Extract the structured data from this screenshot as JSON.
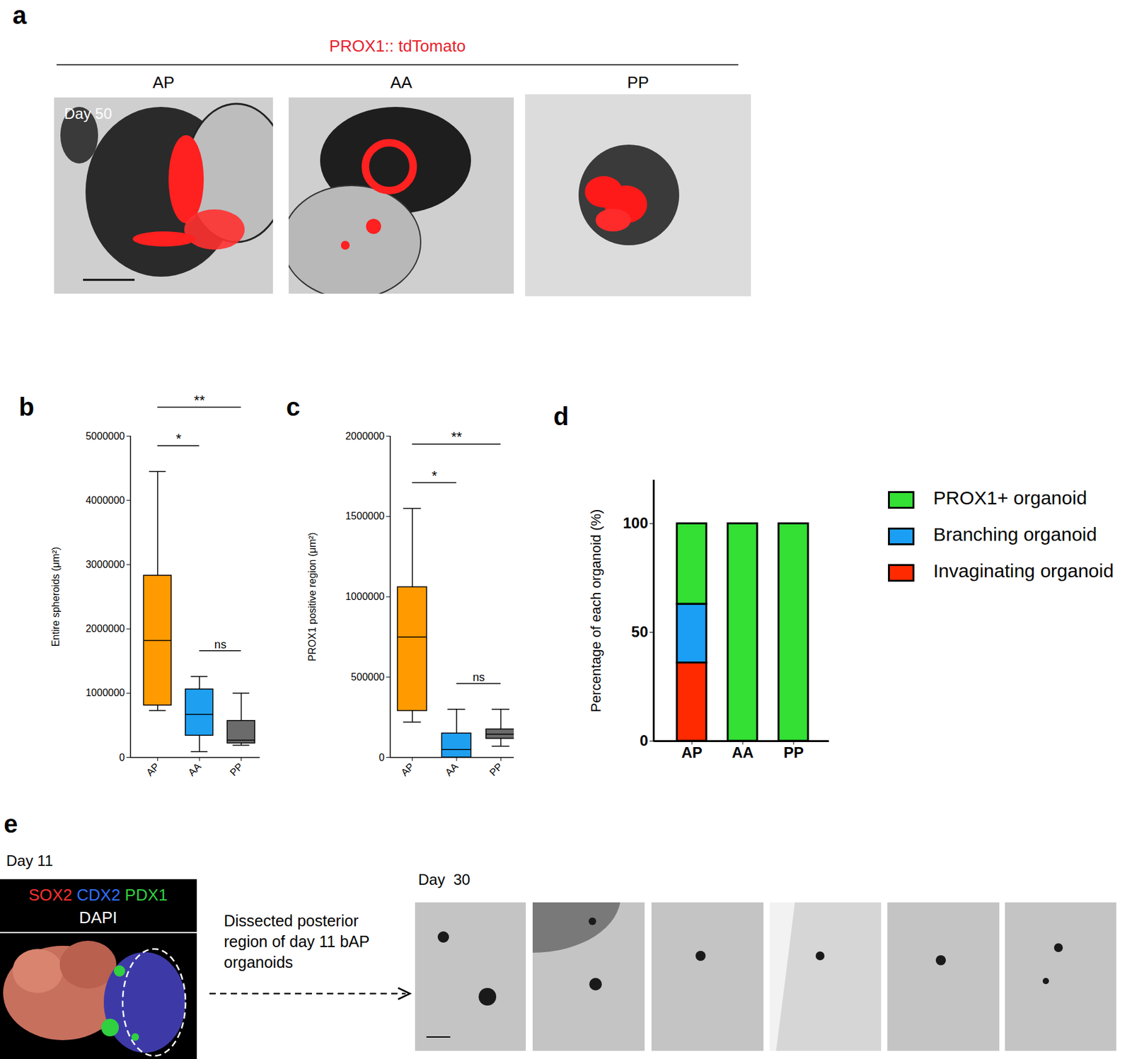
{
  "panel_a": {
    "letter": "a",
    "header": "PROX1:: tdTomato",
    "day_label": "Day 50",
    "images": [
      "AP",
      "AA",
      "PP"
    ]
  },
  "chart_data": [
    {
      "type": "box",
      "letter": "b",
      "y_label": "Entire spheroids (μm²)",
      "categories": [
        "AP",
        "AA",
        "PP"
      ],
      "colors": [
        "#ff9a00",
        "#1e9ff0",
        "#6b6b6b"
      ],
      "boxes": [
        {
          "min": 730000,
          "q1": 810000,
          "median": 1820000,
          "q3": 2830000,
          "max": 4450000
        },
        {
          "min": 90000,
          "q1": 340000,
          "median": 670000,
          "q3": 1060000,
          "max": 1260000
        },
        {
          "min": 190000,
          "q1": 220000,
          "median": 270000,
          "q3": 570000,
          "max": 1000000
        }
      ],
      "ylim": [
        0,
        5000000
      ],
      "yticks": [
        0,
        1000000,
        2000000,
        3000000,
        4000000,
        5000000
      ],
      "comparisons": [
        {
          "between": [
            "AP",
            "AA"
          ],
          "label": "*"
        },
        {
          "between": [
            "AP",
            "PP"
          ],
          "label": "**"
        },
        {
          "between": [
            "AA",
            "PP"
          ],
          "label": "ns"
        }
      ]
    },
    {
      "type": "box",
      "letter": "c",
      "y_label": "PROX1 positive region (μm²)",
      "categories": [
        "AP",
        "AA",
        "PP"
      ],
      "colors": [
        "#ff9a00",
        "#1e9ff0",
        "#6b6b6b"
      ],
      "boxes": [
        {
          "min": 220000,
          "q1": 290000,
          "median": 750000,
          "q3": 1060000,
          "max": 1550000
        },
        {
          "min": 0,
          "q1": 0,
          "median": 50000,
          "q3": 150000,
          "max": 300000
        },
        {
          "min": 70000,
          "q1": 117000,
          "median": 145000,
          "q3": 175000,
          "max": 300000
        }
      ],
      "ylim": [
        0,
        2000000
      ],
      "yticks": [
        0,
        500000,
        1000000,
        1500000,
        2000000
      ],
      "comparisons": [
        {
          "between": [
            "AP",
            "AA"
          ],
          "label": "*"
        },
        {
          "between": [
            "AP",
            "PP"
          ],
          "label": "**"
        },
        {
          "between": [
            "AA",
            "PP"
          ],
          "label": "ns"
        }
      ]
    },
    {
      "type": "bar",
      "stacked": true,
      "letter": "d",
      "y_label": "Percentage of each organoid (%)",
      "categories": [
        "AP",
        "AA",
        "PP"
      ],
      "series": [
        {
          "name": "Invaginating organoid",
          "color": "#ff2a00",
          "values": [
            36,
            0,
            0
          ]
        },
        {
          "name": "Branching organoid",
          "color": "#1a9ff5",
          "values": [
            27,
            0,
            0
          ]
        },
        {
          "name": "PROX1+ organoid",
          "color": "#33e033",
          "values": [
            37,
            100,
            100
          ]
        }
      ],
      "ylim": [
        0,
        120
      ],
      "yticks": [
        0,
        50,
        100
      ],
      "legend": "right"
    }
  ],
  "panel_e": {
    "letter": "e",
    "left_label": "Day 11",
    "stain_labels": [
      {
        "text": "SOX2",
        "color": "#ff3030"
      },
      {
        "text": "CDX2",
        "color": "#3070ff"
      },
      {
        "text": "PDX1",
        "color": "#30d040"
      },
      {
        "text": "DAPI",
        "color": "#ffffff"
      }
    ],
    "arrow_text": [
      "Dissected posterior",
      "region of day 11 bAP",
      "organoids"
    ],
    "right_label": "Day  30"
  }
}
